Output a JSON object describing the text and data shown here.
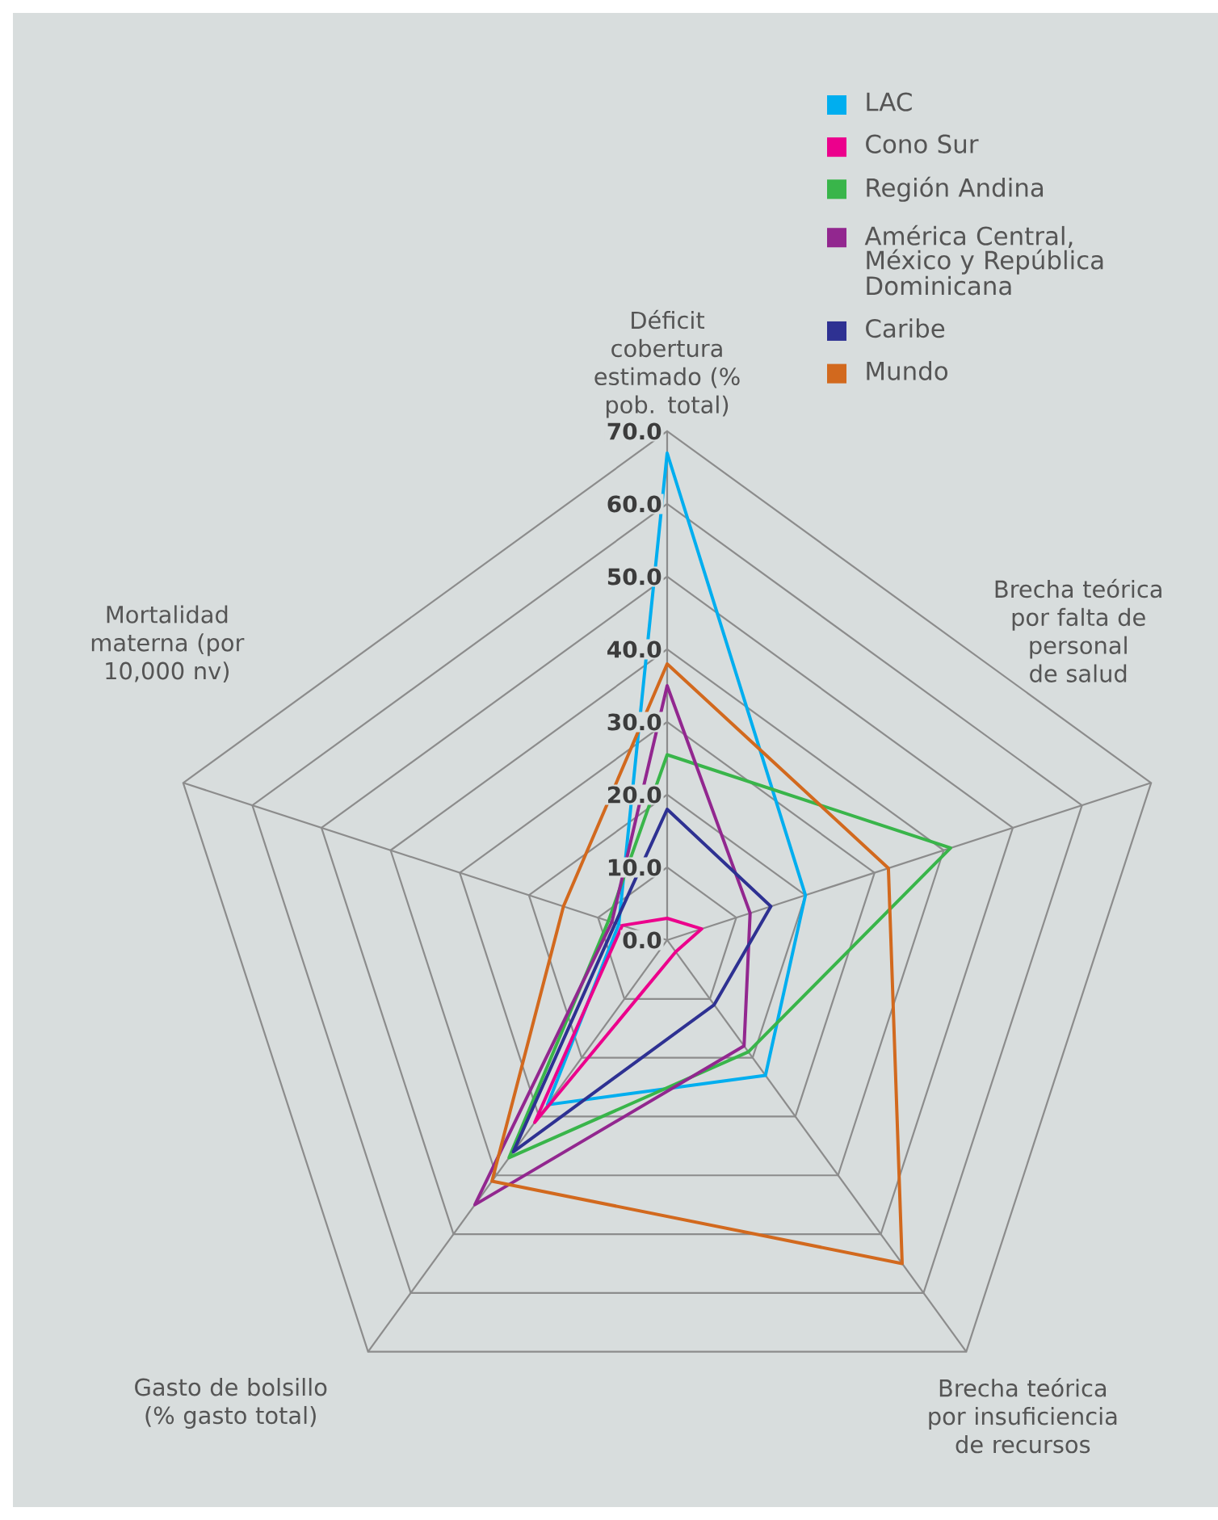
{
  "chart_data": {
    "type": "radar",
    "categories": [
      "Déficit cobertura estimado (% pob. total)",
      "Brecha teórica por falta de personal de salud",
      "Brecha teórica por insuficiencia de recursos",
      "Gasto de bolsillo (% gasto total)",
      "Mortalidad materna (por 10,000 nv)"
    ],
    "ylim": [
      0,
      70
    ],
    "yticks": [
      {
        "value": 0,
        "label": "0.0"
      },
      {
        "value": 10,
        "label": "10.0"
      },
      {
        "value": 20,
        "label": "20.0"
      },
      {
        "value": 30,
        "label": "30.0"
      },
      {
        "value": 40,
        "label": "40.0"
      },
      {
        "value": 50,
        "label": "50.0"
      },
      {
        "value": 60,
        "label": "60.0"
      },
      {
        "value": 70,
        "label": "70.0"
      }
    ],
    "grid": true,
    "legend": "top right",
    "marker": "none",
    "line_style": "solid",
    "series": [
      {
        "name": "LAC",
        "color": "#00aeef",
        "values": [
          67,
          20,
          23,
          28,
          7
        ]
      },
      {
        "name": "Cono Sur",
        "color": "#ec008c",
        "values": [
          3,
          5,
          2,
          31,
          6.5
        ]
      },
      {
        "name": "Región Andina",
        "color": "#39b54a",
        "values": [
          25.5,
          41,
          19,
          37,
          8.5
        ]
      },
      {
        "name": "América Central, México y República Dominicana",
        "color": "#92278f",
        "values": [
          35,
          12,
          18,
          45,
          8
        ]
      },
      {
        "name": "Caribe",
        "color": "#2e3192",
        "values": [
          18,
          15,
          11,
          36,
          7.5
        ]
      },
      {
        "name": "Mundo",
        "color": "#d2691e",
        "values": [
          38,
          32,
          55,
          41,
          15
        ]
      }
    ]
  }
}
